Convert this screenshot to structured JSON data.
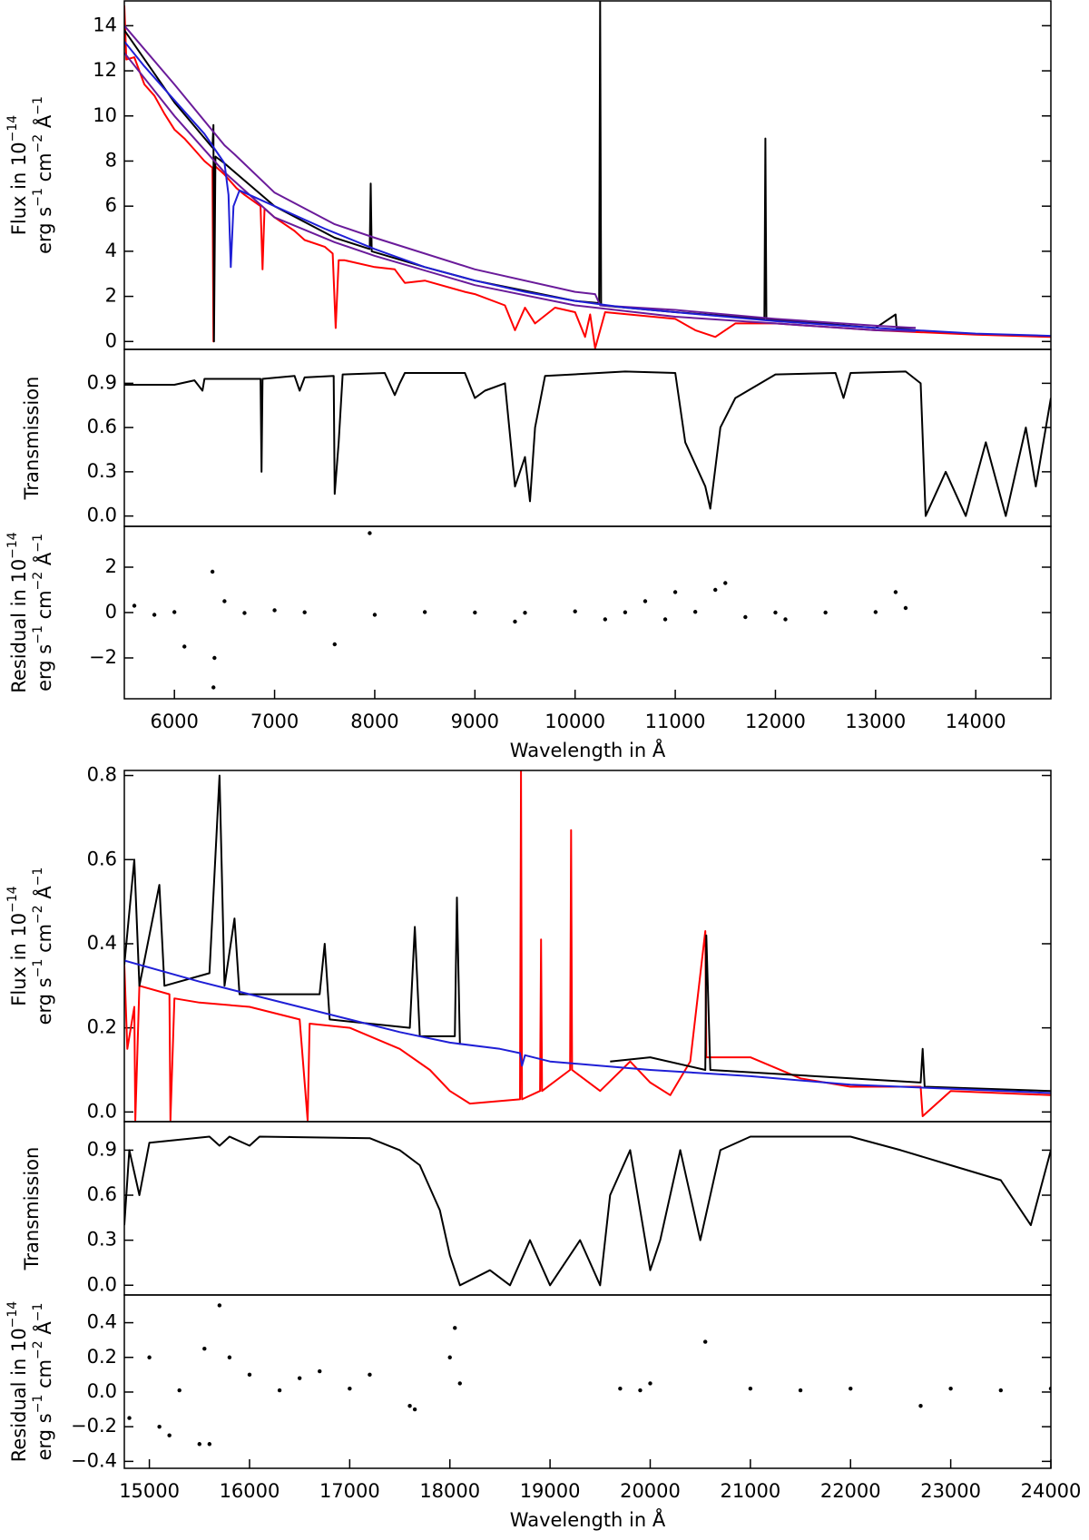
{
  "chart_data": [
    {
      "type": "line",
      "ylabel": [
        [
          "Flux in 10",
          "−14"
        ],
        [
          "erg s",
          "−1",
          " cm",
          "−2",
          " Å",
          "−1"
        ]
      ],
      "xlim": [
        5500,
        14750
      ],
      "ylim": [
        -0.35,
        15.1
      ],
      "yticks": [
        0,
        2,
        4,
        6,
        8,
        10,
        12,
        14
      ],
      "series": [
        {
          "color": "#ff0000",
          "x": [
            5500,
            5520,
            5600,
            5700,
            5800,
            5900,
            6000,
            6100,
            6200,
            6300,
            6380,
            6390,
            6400,
            6500,
            6620,
            6700,
            6860,
            6880,
            6900,
            7000,
            7200,
            7300,
            7500,
            7580,
            7610,
            7640,
            7700,
            8000,
            8200,
            8300,
            8500,
            8900,
            9000,
            9300,
            9400,
            9500,
            9600,
            9800,
            10000,
            10100,
            10150,
            10200,
            10300,
            11000,
            11200,
            11400,
            11600,
            12000,
            13000,
            14000,
            14750
          ],
          "values": [
            14.9,
            12.5,
            12.6,
            11.4,
            10.9,
            10.1,
            9.4,
            9.0,
            8.5,
            8.0,
            7.7,
            0,
            7.8,
            7.4,
            6.8,
            6.5,
            6.0,
            3.2,
            5.9,
            5.5,
            4.9,
            4.5,
            4.2,
            3.9,
            0.6,
            3.6,
            3.6,
            3.3,
            3.2,
            2.6,
            2.7,
            2.2,
            2.1,
            1.6,
            0.5,
            1.5,
            0.8,
            1.5,
            1.3,
            0.2,
            1.2,
            -0.3,
            1.3,
            1.0,
            0.5,
            0.2,
            0.8,
            0.8,
            0.5,
            0.3,
            0.2
          ]
        },
        {
          "color": "#000000",
          "x": [
            5500,
            6000,
            6380,
            6390,
            6395,
            6410,
            6500,
            7000,
            7600,
            7950,
            7960,
            7970,
            8500,
            9000,
            10000,
            10240,
            10250,
            10260,
            11000,
            11890,
            11900,
            11910,
            13000,
            13200,
            13210,
            13400
          ],
          "values": [
            13.8,
            10.6,
            8.6,
            9.6,
            0,
            8.2,
            7.9,
            6.0,
            4.6,
            4.1,
            7.0,
            4.0,
            3.3,
            2.7,
            1.8,
            1.7,
            15.1,
            1.6,
            1.3,
            1.0,
            9.0,
            1.0,
            0.6,
            1.2,
            0.6,
            0.6
          ]
        },
        {
          "color": "#6a1b9a",
          "x": [
            5500,
            6000,
            6500,
            6600,
            7000,
            7600,
            8000,
            9000,
            10000,
            10200,
            10250,
            11000,
            12000,
            13000,
            13400
          ],
          "values": [
            14.0,
            11.4,
            8.7,
            8.3,
            6.6,
            5.2,
            4.6,
            3.2,
            2.2,
            2.1,
            1.6,
            1.4,
            1.0,
            0.7,
            0.6
          ]
        },
        {
          "color": "#6a1b9a",
          "x": [
            5500,
            6000,
            6500,
            6600,
            7000,
            7600,
            8000,
            9000,
            10000,
            11000,
            12000,
            13000,
            13400
          ],
          "values": [
            12.8,
            10.0,
            7.5,
            7.1,
            5.5,
            4.4,
            3.8,
            2.5,
            1.6,
            1.1,
            0.8,
            0.5,
            0.45
          ]
        },
        {
          "color": "#1f1fd6",
          "x": [
            5500,
            5700,
            6000,
            6300,
            6500,
            6540,
            6563,
            6590,
            6650,
            7000,
            7500,
            8000,
            8500,
            9000,
            9500,
            10000,
            10500,
            11000,
            12000,
            13000,
            14000,
            14750
          ],
          "values": [
            13.3,
            12.2,
            10.7,
            9.2,
            7.9,
            6.5,
            3.3,
            6.0,
            6.7,
            6.0,
            5.0,
            4.1,
            3.3,
            2.7,
            2.2,
            1.8,
            1.5,
            1.3,
            0.9,
            0.6,
            0.35,
            0.25
          ]
        }
      ]
    },
    {
      "type": "line",
      "ylabel": [
        [
          "Transmission"
        ]
      ],
      "xlim": [
        5500,
        14750
      ],
      "ylim": [
        -0.07,
        1.13
      ],
      "yticks": [
        {
          "value": 0.0,
          "label": "0.0"
        },
        0.3,
        0.6,
        0.9
      ],
      "series": [
        {
          "color": "#000000",
          "x": [
            5500,
            6000,
            6200,
            6280,
            6300,
            6860,
            6870,
            6880,
            7200,
            7250,
            7300,
            7590,
            7600,
            7640,
            7680,
            8100,
            8200,
            8250,
            8300,
            8900,
            9000,
            9100,
            9300,
            9400,
            9500,
            9550,
            9600,
            9700,
            10500,
            11000,
            11100,
            11300,
            11350,
            11450,
            11600,
            12000,
            12600,
            12680,
            12750,
            13300,
            13450,
            13500,
            13700,
            13900,
            14100,
            14300,
            14500,
            14600,
            14750
          ],
          "values": [
            0.89,
            0.89,
            0.92,
            0.85,
            0.93,
            0.93,
            0.3,
            0.93,
            0.95,
            0.85,
            0.94,
            0.95,
            0.15,
            0.5,
            0.96,
            0.97,
            0.82,
            0.9,
            0.97,
            0.97,
            0.8,
            0.85,
            0.9,
            0.2,
            0.4,
            0.1,
            0.6,
            0.95,
            0.98,
            0.97,
            0.5,
            0.2,
            0.05,
            0.6,
            0.8,
            0.96,
            0.97,
            0.8,
            0.97,
            0.98,
            0.9,
            0.0,
            0.3,
            0.0,
            0.5,
            0.0,
            0.6,
            0.2,
            0.8
          ]
        }
      ]
    },
    {
      "type": "scatter",
      "ylabel": [
        [
          "Residual in 10",
          "−14"
        ],
        [
          "erg s",
          "−1",
          " cm",
          "−2",
          " Å",
          "−1"
        ]
      ],
      "xlabel": "Wavelength in Å",
      "xlim": [
        5500,
        14750
      ],
      "ylim": [
        -3.8,
        3.8
      ],
      "xticks": [
        6000,
        7000,
        8000,
        9000,
        10000,
        11000,
        12000,
        13000,
        14000
      ],
      "yticks": [
        {
          "value": -2,
          "label": "−2"
        },
        0,
        2
      ],
      "series": [
        {
          "color": "#000000",
          "x": [
            5600,
            5800,
            6100,
            6380,
            6390,
            6400,
            6500,
            7600,
            7950,
            9400,
            10300,
            10700,
            10900,
            11000,
            11400,
            11500,
            11700,
            12100,
            13200,
            13300,
            7000,
            8000,
            9000,
            10000,
            12000,
            13000,
            6000,
            6700,
            7300,
            8500,
            9500,
            10500,
            11200,
            12500
          ],
          "values": [
            0.3,
            -0.1,
            -1.5,
            1.8,
            -3.3,
            -2,
            0.5,
            -1.4,
            3.5,
            -0.4,
            -0.3,
            0.5,
            -0.3,
            0.9,
            1,
            1.3,
            -0.2,
            -0.3,
            0.9,
            0.2,
            0.1,
            -0.1,
            0,
            0.05,
            0,
            0.02,
            0.02,
            -0.02,
            0.01,
            0.02,
            -0.01,
            0.01,
            0.03,
            0
          ]
        }
      ]
    },
    {
      "type": "line",
      "ylabel": [
        [
          "Flux in 10",
          "−14"
        ],
        [
          "erg s",
          "−1",
          " cm",
          "−2",
          " Å",
          "−1"
        ]
      ],
      "xlim": [
        14750,
        24000
      ],
      "ylim": [
        -0.023,
        0.812
      ],
      "yticks": [
        {
          "value": 0.0,
          "label": "0.0"
        },
        0.2,
        0.4,
        0.6,
        0.8
      ],
      "series": [
        {
          "color": "#ff0000",
          "x": [
            14750,
            14780,
            14850,
            14860,
            14900,
            15200,
            15210,
            15250,
            15500,
            16000,
            16500,
            16580,
            16600,
            17000,
            17500,
            17800,
            18000,
            18200,
            18700,
            18710,
            18720,
            18900,
            18910,
            18920,
            19200,
            19210,
            19220,
            19500,
            19800,
            20000,
            20200,
            20400,
            20550,
            20560,
            21000,
            21500,
            22000,
            22700,
            22720,
            23000,
            24000
          ],
          "values": [
            0.35,
            0.15,
            0.25,
            -0.02,
            0.3,
            0.28,
            -0.02,
            0.27,
            0.26,
            0.25,
            0.22,
            -0.02,
            0.21,
            0.2,
            0.15,
            0.1,
            0.05,
            0.02,
            0.03,
            0.81,
            0.03,
            0.05,
            0.41,
            0.05,
            0.1,
            0.67,
            0.1,
            0.05,
            0.12,
            0.07,
            0.04,
            0.12,
            0.43,
            0.13,
            0.13,
            0.08,
            0.06,
            0.06,
            -0.01,
            0.05,
            0.04
          ]
        },
        {
          "color": "#000000",
          "x": [
            14750,
            14850,
            14900,
            15100,
            15150,
            15600,
            15700,
            15750,
            15850,
            15900,
            16700,
            16750,
            16800,
            17600,
            17650,
            17700,
            18050,
            18070,
            18100,
            18200,
            19600,
            20000,
            20550,
            20560,
            20600,
            22700,
            22720,
            22740,
            24000
          ],
          "values": [
            0.35,
            0.6,
            0.3,
            0.54,
            0.3,
            0.33,
            0.8,
            0.3,
            0.46,
            0.28,
            0.28,
            0.4,
            0.22,
            0.2,
            0.44,
            0.18,
            0.18,
            0.51,
            0.16,
            null,
            0.12,
            0.13,
            0.1,
            0.42,
            0.1,
            0.07,
            0.15,
            0.06,
            0.05
          ]
        },
        {
          "color": "#1f1fd6",
          "x": [
            14750,
            15500,
            16000,
            17000,
            17500,
            18000,
            18500,
            18700,
            18720,
            18750,
            19000,
            19500,
            20000,
            21000,
            22000,
            23000,
            24000
          ],
          "values": [
            0.36,
            0.31,
            0.28,
            0.22,
            0.19,
            0.165,
            0.15,
            0.14,
            0.11,
            0.135,
            0.12,
            0.11,
            0.1,
            0.085,
            0.065,
            0.055,
            0.045
          ]
        }
      ]
    },
    {
      "type": "line",
      "ylabel": [
        [
          "Transmission"
        ]
      ],
      "xlim": [
        14750,
        24000
      ],
      "ylim": [
        -0.065,
        1.09
      ],
      "yticks": [
        {
          "value": 0.0,
          "label": "0.0"
        },
        0.3,
        0.6,
        0.9
      ],
      "series": [
        {
          "color": "#000000",
          "x": [
            14750,
            14800,
            14900,
            15000,
            15600,
            15700,
            15800,
            16000,
            16100,
            17200,
            17500,
            17700,
            17900,
            18000,
            18100,
            18400,
            18600,
            18800,
            19000,
            19300,
            19500,
            19600,
            19800,
            20000,
            20100,
            20300,
            20500,
            20700,
            21000,
            22000,
            22500,
            23000,
            23500,
            23800,
            24000
          ],
          "values": [
            0.4,
            0.9,
            0.6,
            0.95,
            0.99,
            0.93,
            0.99,
            0.93,
            0.99,
            0.98,
            0.9,
            0.8,
            0.5,
            0.2,
            0.0,
            0.1,
            0.0,
            0.3,
            0.0,
            0.3,
            0.0,
            0.6,
            0.9,
            0.1,
            0.3,
            0.9,
            0.3,
            0.9,
            0.99,
            0.99,
            0.9,
            0.8,
            0.7,
            0.4,
            0.9
          ]
        }
      ]
    },
    {
      "type": "scatter",
      "ylabel": [
        [
          "Residual in 10",
          "−14"
        ],
        [
          "erg s",
          "−1",
          " cm",
          "−2",
          " Å",
          "−1"
        ]
      ],
      "xlabel": "Wavelength in Å",
      "xlim": [
        14750,
        24000
      ],
      "ylim": [
        -0.44,
        0.56
      ],
      "xticks": [
        15000,
        16000,
        17000,
        18000,
        19000,
        20000,
        21000,
        22000,
        23000,
        24000
      ],
      "yticks": [
        {
          "value": -0.4,
          "label": "−0.4"
        },
        {
          "value": -0.2,
          "label": "−0.2"
        },
        {
          "value": 0.0,
          "label": "0.0"
        },
        0.2,
        0.4
      ],
      "series": [
        {
          "color": "#000000",
          "x": [
            14800,
            15000,
            15100,
            15200,
            15500,
            15550,
            15600,
            15700,
            15800,
            16000,
            16500,
            16700,
            17200,
            17600,
            17650,
            18050,
            18000,
            18100,
            19700,
            20000,
            20550,
            21000,
            22000,
            22700,
            23000,
            24000,
            15300,
            16300,
            17000,
            19900,
            21500,
            23500
          ],
          "values": [
            -0.15,
            0.2,
            -0.2,
            -0.25,
            -0.3,
            0.25,
            -0.3,
            0.5,
            0.2,
            0.1,
            0.08,
            0.12,
            0.1,
            -0.08,
            -0.1,
            0.37,
            0.2,
            0.05,
            0.02,
            0.05,
            0.29,
            0.02,
            0.02,
            -0.08,
            0.02,
            0.02,
            0.01,
            0.01,
            0.02,
            0.01,
            0.01,
            0.01
          ]
        }
      ]
    }
  ]
}
